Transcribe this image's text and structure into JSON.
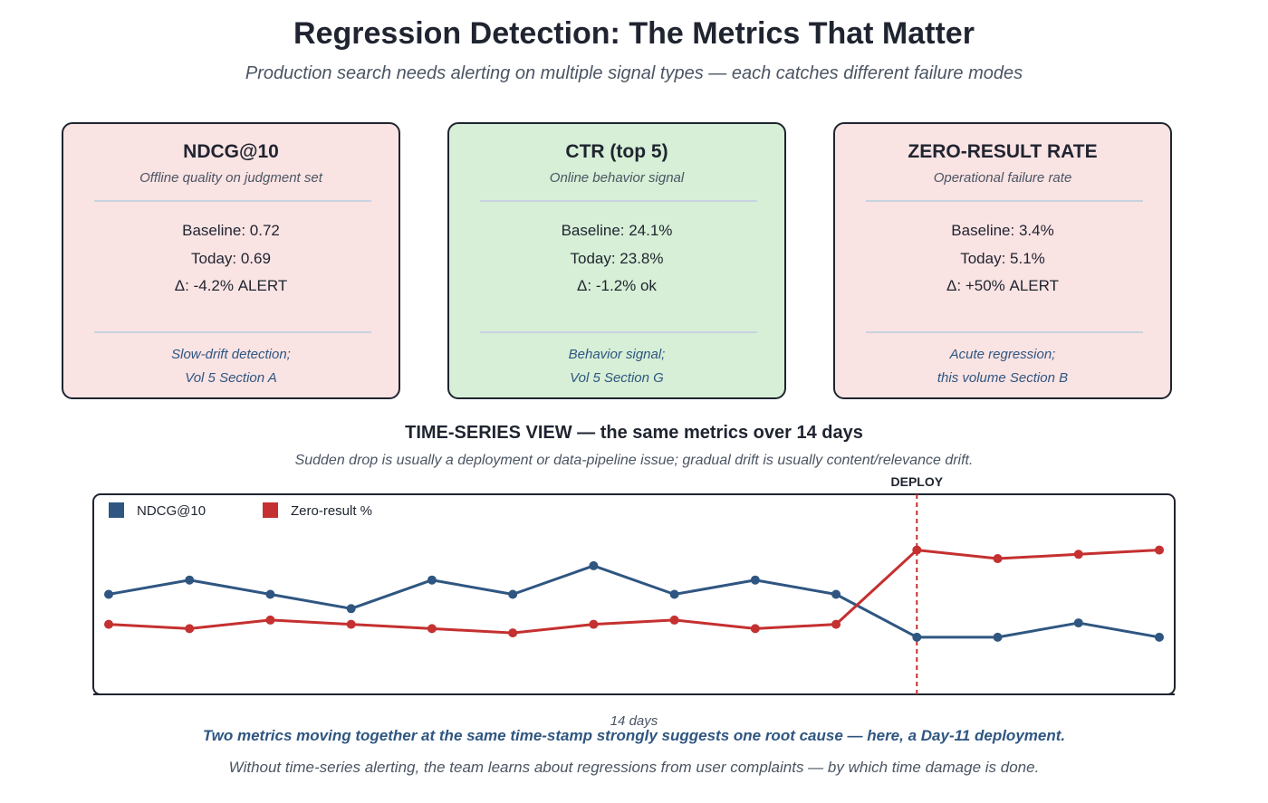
{
  "header": {
    "title": "Regression Detection: The Metrics That Matter",
    "subtitle": "Production search needs alerting on multiple signal types — each catches different failure modes"
  },
  "cards": [
    {
      "title": "NDCG@10",
      "subtitle": "Offline quality on judgment set",
      "baseline": "Baseline: 0.72",
      "today": "Today: 0.69",
      "delta": "Δ: -4.2% ALERT",
      "foot1": "Slow-drift detection;",
      "foot2": "Vol 5 Section A",
      "status": "alert",
      "bg_color": "#fae3e3"
    },
    {
      "title": "CTR (top 5)",
      "subtitle": "Online behavior signal",
      "baseline": "Baseline: 24.1%",
      "today": "Today: 23.8%",
      "delta": "Δ: -1.2% ok",
      "foot1": "Behavior signal;",
      "foot2": "Vol 5 Section G",
      "status": "ok",
      "bg_color": "#d6efd6"
    },
    {
      "title": "ZERO-RESULT RATE",
      "subtitle": "Operational failure rate",
      "baseline": "Baseline: 3.4%",
      "today": "Today: 5.1%",
      "delta": "Δ: +50% ALERT",
      "foot1": "Acute regression;",
      "foot2": "this volume Section B",
      "status": "alert",
      "bg_color": "#fae3e3"
    }
  ],
  "timeseries": {
    "title": "TIME-SERIES VIEW — the same metrics over 14 days",
    "subtitle": "Sudden drop is usually a deployment or data-pipeline issue; gradual drift is usually content/relevance drift."
  },
  "chart_data": {
    "type": "line",
    "x": [
      1,
      2,
      3,
      4,
      5,
      6,
      7,
      8,
      9,
      10,
      11,
      12,
      13,
      14
    ],
    "xlabel": "14 days",
    "ylim": [
      0,
      14
    ],
    "grid": false,
    "legend_position": "top-left",
    "series": [
      {
        "name": "NDCG@10",
        "color": "#2f5681",
        "values": [
          7,
          8,
          7,
          6,
          8,
          7,
          9,
          7,
          8,
          7,
          4,
          4,
          5,
          4
        ]
      },
      {
        "name": "Zero-result %",
        "color": "#c53030",
        "values": [
          4.9,
          4.6,
          5.2,
          4.9,
          4.6,
          4.3,
          4.9,
          5.2,
          4.6,
          4.9,
          10.1,
          9.5,
          9.8,
          10.1
        ]
      }
    ],
    "annotations": [
      {
        "x": 11,
        "label": "DEPLOY",
        "style": "dashed",
        "color": "#c53030"
      }
    ]
  },
  "footer": {
    "conclusion": "Two metrics moving together at the same time-stamp strongly suggests one root cause — here, a Day-11 deployment.",
    "note": "Without time-series alerting, the team learns about regressions from user complaints — by which time damage is done."
  }
}
